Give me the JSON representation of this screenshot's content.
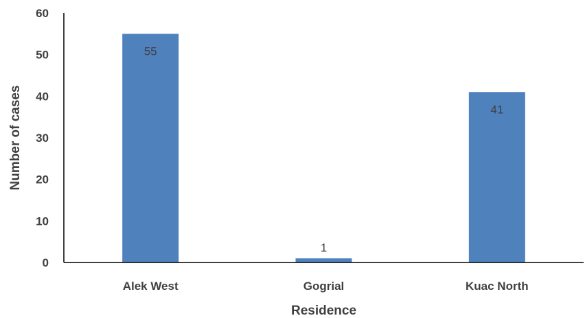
{
  "chart_data": {
    "type": "bar",
    "categories": [
      "Alek West",
      "Gogrial",
      "Kuac North"
    ],
    "values": [
      55,
      1,
      41
    ],
    "data_labels": [
      "55",
      "1",
      "41"
    ],
    "xlabel": "Residence",
    "ylabel": "Number of cases",
    "ylim": [
      0,
      60
    ],
    "yticks": [
      0,
      10,
      20,
      30,
      40,
      50,
      60
    ],
    "grid": false,
    "legend": "none",
    "bar_color": "#4F81BD"
  }
}
